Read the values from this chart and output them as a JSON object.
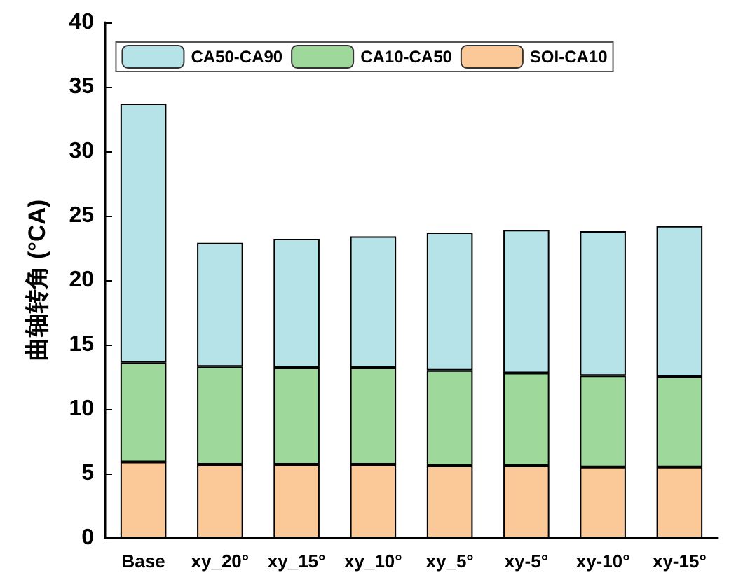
{
  "chart_data": {
    "type": "bar",
    "stacked": true,
    "ylabel": "曲轴转角 (°CA)",
    "categories": [
      "Base",
      "xy_20°",
      "xy_15°",
      "xy_10°",
      "xy_5°",
      "xy-5°",
      "xy-10°",
      "xy-15°"
    ],
    "series": [
      {
        "name": "SOI-CA10",
        "color": "#fbc898",
        "values": [
          5.9,
          5.7,
          5.7,
          5.7,
          5.6,
          5.6,
          5.5,
          5.5
        ]
      },
      {
        "name": "CA10-CA50",
        "color": "#9fd89b",
        "values": [
          7.7,
          7.6,
          7.5,
          7.5,
          7.4,
          7.2,
          7.1,
          7.0
        ]
      },
      {
        "name": "CA50-CA90",
        "color": "#b5e3e8",
        "values": [
          20.1,
          9.6,
          10.0,
          10.2,
          10.7,
          11.1,
          11.2,
          11.7
        ]
      }
    ],
    "ylim": [
      0,
      40
    ],
    "yticks": [
      0,
      5,
      10,
      15,
      20,
      25,
      30,
      35,
      40
    ],
    "grid": false,
    "legend": "top"
  }
}
